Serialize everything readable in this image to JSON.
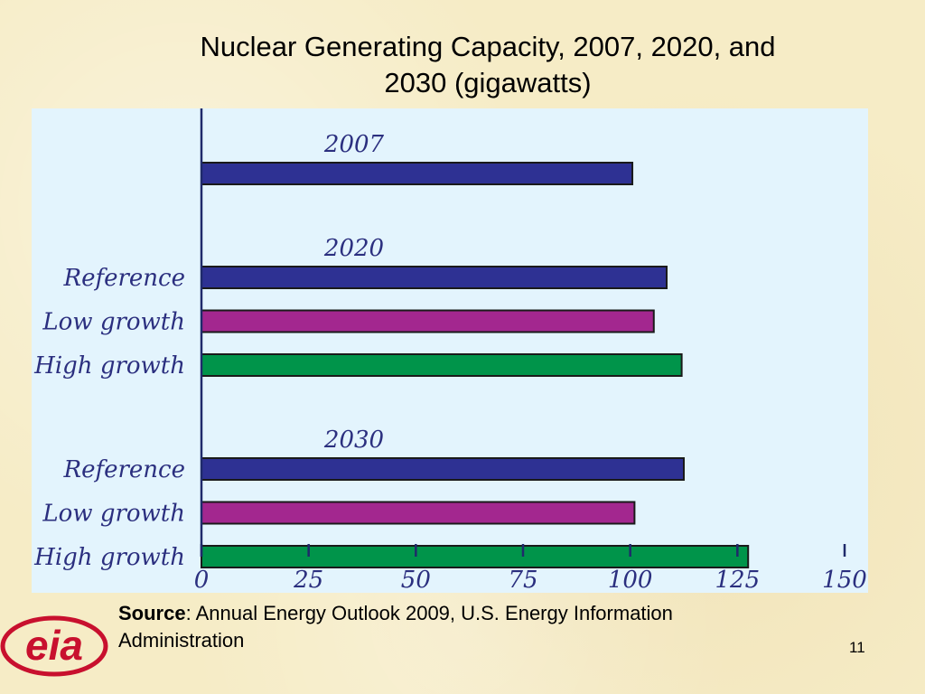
{
  "slide": {
    "title_line1": "Nuclear Generating Capacity, 2007, 2020, and",
    "title_line2": "2030 (gigawatts)",
    "source_label": "Source",
    "source_text": ":  Annual Energy Outlook 2009, U.S. Energy Information Administration",
    "page_number": "11",
    "logo_text": "eia"
  },
  "colors": {
    "reference": "#2e3193",
    "low_growth": "#a3278f",
    "high_growth": "#00944a",
    "panel_bg": "#e3f4fd",
    "axis": "#1f2a6b",
    "label_text": "#2b2f7f",
    "logo_red": "#c8102e"
  },
  "chart_data": {
    "type": "bar",
    "orientation": "horizontal",
    "title": "Nuclear Generating Capacity, 2007, 2020, and 2030 (gigawatts)",
    "xlim": [
      0,
      150
    ],
    "xticks": [
      0,
      25,
      50,
      75,
      100,
      125,
      150
    ],
    "grid": false,
    "groups": [
      {
        "heading": "2007",
        "bars": [
          {
            "label": "",
            "value": 100.5,
            "kind": "reference"
          }
        ]
      },
      {
        "heading": "2020",
        "bars": [
          {
            "label": "Reference",
            "value": 108.5,
            "kind": "reference"
          },
          {
            "label": "Low growth",
            "value": 105.5,
            "kind": "low_growth"
          },
          {
            "label": "High growth",
            "value": 112,
            "kind": "high_growth"
          }
        ]
      },
      {
        "heading": "2030",
        "bars": [
          {
            "label": "Reference",
            "value": 112.5,
            "kind": "reference"
          },
          {
            "label": "Low growth",
            "value": 101,
            "kind": "low_growth"
          },
          {
            "label": "High growth",
            "value": 127.5,
            "kind": "high_growth"
          }
        ]
      }
    ]
  }
}
